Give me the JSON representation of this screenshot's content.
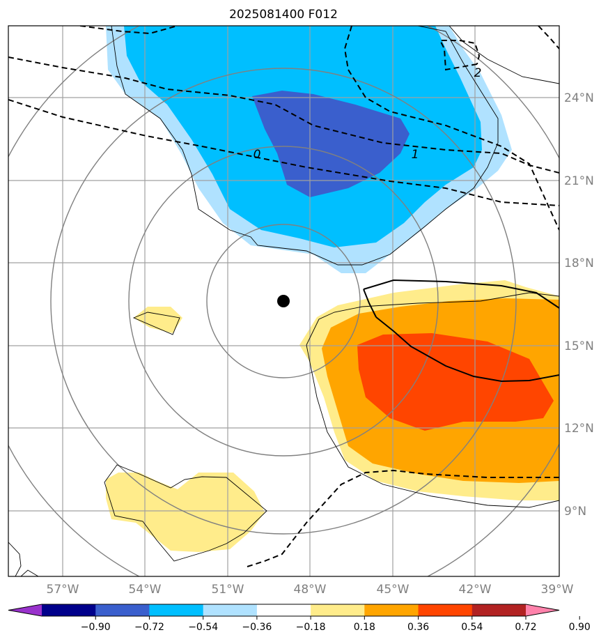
{
  "title": "2025081400 F012",
  "map": {
    "lon_range": [
      -59,
      -39
    ],
    "lat_range": [
      7,
      27
    ],
    "lon_ticks": [
      {
        "value": -57,
        "label": "57°W"
      },
      {
        "value": -54,
        "label": "54°W"
      },
      {
        "value": -51,
        "label": "51°W"
      },
      {
        "value": -48,
        "label": "48°W"
      },
      {
        "value": -45,
        "label": "45°W"
      },
      {
        "value": -42,
        "label": "42°W"
      },
      {
        "value": -39,
        "label": "39°W"
      }
    ],
    "lat_ticks": [
      {
        "value": 24,
        "label": "24°N"
      },
      {
        "value": 21,
        "label": "21°N"
      },
      {
        "value": 18,
        "label": "18°N"
      },
      {
        "value": 15,
        "label": "15°N"
      },
      {
        "value": 12,
        "label": "12°N"
      },
      {
        "value": 9,
        "label": "9°N"
      }
    ],
    "gridlines": true,
    "storm_center": {
      "lon": -49.0,
      "lat": 16.6
    },
    "contour_labels": [
      {
        "text": "0",
        "lon": -49.1,
        "lat": 22.0
      },
      {
        "text": "1",
        "lon": -44.2,
        "lat": 22.0
      },
      {
        "text": "2",
        "lon": -42.0,
        "lat": 25.9
      }
    ]
  },
  "colorbar": {
    "extend": "both",
    "ticks": [
      "−0.90",
      "−0.72",
      "−0.54",
      "−0.36",
      "−0.18",
      "0.18",
      "0.36",
      "0.54",
      "0.72",
      "0.90"
    ],
    "colors": [
      "#9932cc",
      "#00008b",
      "#3a5fcd",
      "#00bfff",
      "#b0e2ff",
      "#ffffff",
      "#ffec8b",
      "#ffa500",
      "#ff4500",
      "#b22222",
      "#ff82ab"
    ]
  }
}
